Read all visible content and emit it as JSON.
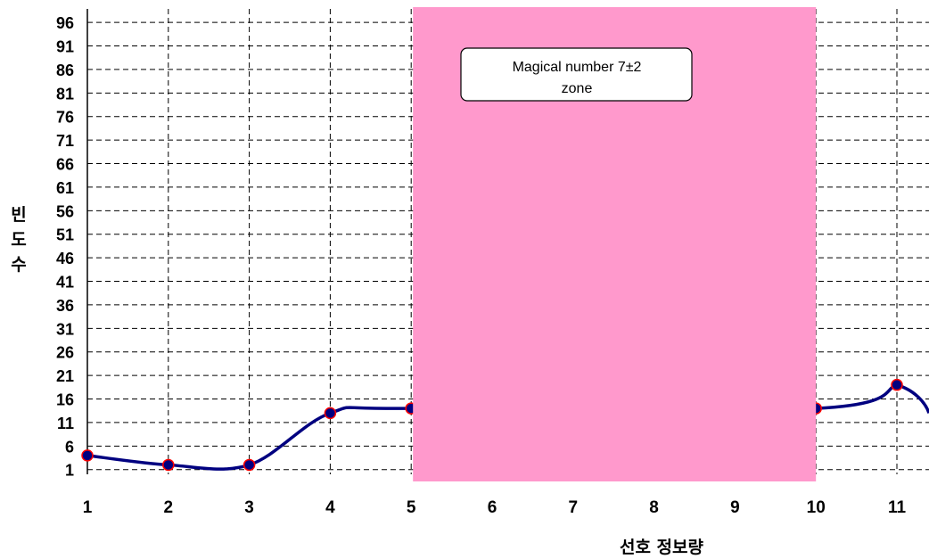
{
  "chart_data": {
    "type": "line",
    "xlabel": "선호 정보량",
    "ylabel": "빈도수",
    "x_ticks": [
      1,
      2,
      3,
      4,
      5,
      6,
      7,
      8,
      9,
      10,
      11
    ],
    "y_ticks": [
      1,
      6,
      11,
      16,
      21,
      26,
      31,
      36,
      41,
      46,
      51,
      56,
      61,
      66,
      71,
      76,
      81,
      86,
      91,
      96
    ],
    "xlim": [
      1,
      11.4
    ],
    "ylim": [
      0,
      100
    ],
    "grid": true,
    "series": [
      {
        "x": [
          1,
          2,
          3,
          4,
          5,
          10,
          11
        ],
        "y": [
          4,
          2,
          2,
          13,
          14,
          14,
          19
        ],
        "color": "#000080",
        "marker_fill": "#000080",
        "marker_edge": "#ff0000"
      }
    ],
    "shaded_region": {
      "x_start": 5,
      "x_end": 10,
      "color": "#ff99cc",
      "label": "Magical number 7±2 zone"
    },
    "annotation": {
      "line1": "Magical number 7±2",
      "line2": "zone"
    }
  }
}
